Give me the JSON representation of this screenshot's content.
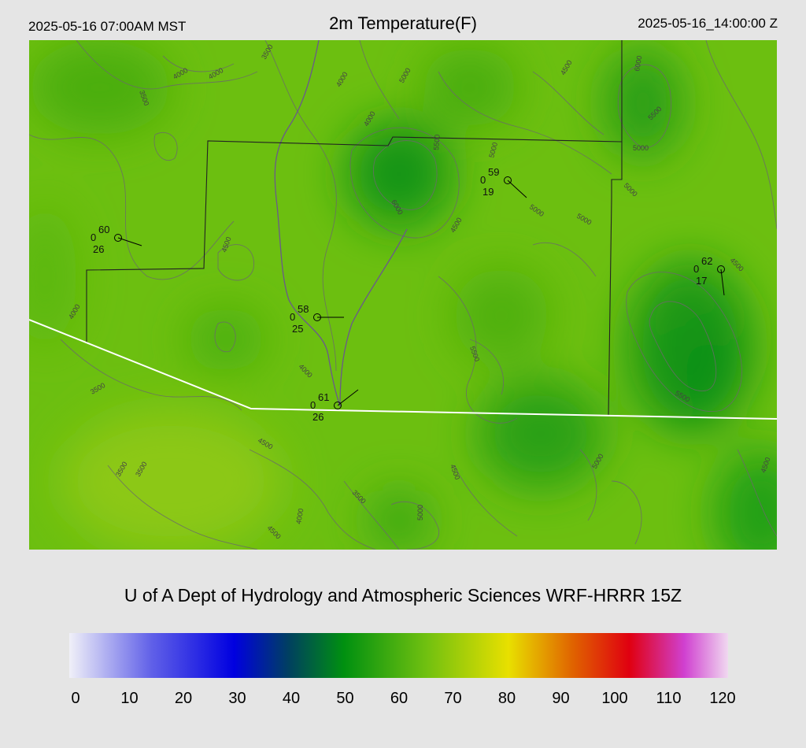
{
  "header": {
    "local_time": "2025-05-16 07:00AM MST",
    "title": "2m Temperature(F)",
    "valid_time": "2025-05-16_14:00:00 Z"
  },
  "footer": {
    "text": "U of A Dept of Hydrology and Atmospheric Sciences WRF-HRRR 15Z"
  },
  "colors": {
    "background": "#e5e5e5",
    "map_base": "#6cbf10",
    "border_line": "#222222",
    "state_line": "#ffffff",
    "contour": "#666666"
  },
  "colorbar": {
    "ticks": [
      "0",
      "10",
      "20",
      "30",
      "40",
      "50",
      "60",
      "70",
      "80",
      "90",
      "100",
      "110",
      "120"
    ],
    "min": 0,
    "max": 120,
    "stops": [
      {
        "value": 0,
        "color": "#f0f0f8"
      },
      {
        "value": 15,
        "color": "#6060e8"
      },
      {
        "value": 30,
        "color": "#0000e0"
      },
      {
        "value": 40,
        "color": "#004060"
      },
      {
        "value": 50,
        "color": "#009010"
      },
      {
        "value": 65,
        "color": "#70c010"
      },
      {
        "value": 80,
        "color": "#e8e000"
      },
      {
        "value": 92,
        "color": "#e06000"
      },
      {
        "value": 102,
        "color": "#e00010"
      },
      {
        "value": 112,
        "color": "#d040d0"
      },
      {
        "value": 120,
        "color": "#f0d8f0"
      }
    ]
  },
  "stations": [
    {
      "id": "st1",
      "temp": "60",
      "precip": "0",
      "dew": "26"
    },
    {
      "id": "st2",
      "temp": "59",
      "precip": "0",
      "dew": "19"
    },
    {
      "id": "st3",
      "temp": "62",
      "precip": "0",
      "dew": "17"
    },
    {
      "id": "st4",
      "temp": "58",
      "precip": "0",
      "dew": "25"
    },
    {
      "id": "st5",
      "temp": "61",
      "precip": "0",
      "dew": "26"
    }
  ],
  "contour_labels": [
    "4000",
    "4000",
    "3500",
    "3500",
    "4000",
    "3500",
    "4000",
    "5000",
    "5000",
    "6000",
    "5500",
    "6000",
    "5500",
    "5000",
    "5000",
    "4500",
    "4500",
    "4000",
    "3500",
    "4000",
    "4500",
    "3500",
    "4500",
    "5500",
    "5500",
    "5000",
    "4500",
    "4500",
    "4000",
    "4500",
    "5000",
    "5000",
    "5000",
    "4500",
    "3500"
  ]
}
